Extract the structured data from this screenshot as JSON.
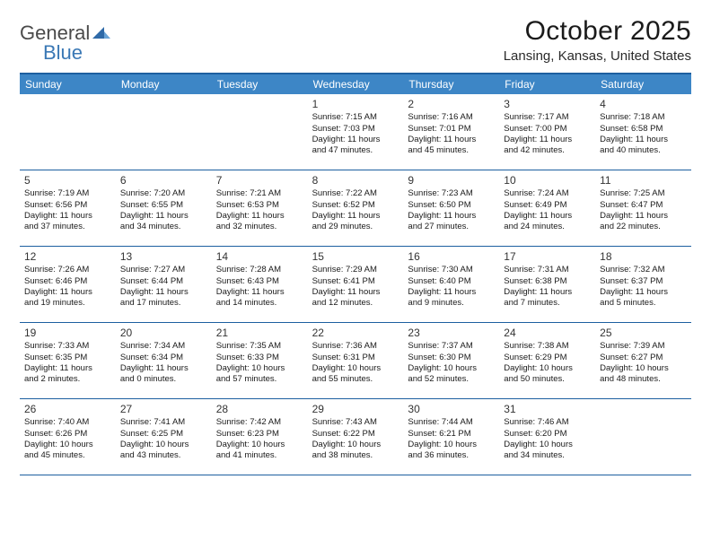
{
  "logo": {
    "general": "General",
    "blue": "Blue"
  },
  "title": "October 2025",
  "location": "Lansing, Kansas, United States",
  "colors": {
    "header_bg": "#3d86c6",
    "border": "#1d5fa0",
    "logo_blue": "#3a78b5",
    "text": "#1a1a1a"
  },
  "day_names": [
    "Sunday",
    "Monday",
    "Tuesday",
    "Wednesday",
    "Thursday",
    "Friday",
    "Saturday"
  ],
  "weeks": [
    [
      null,
      null,
      null,
      {
        "n": "1",
        "sr": "Sunrise: 7:15 AM",
        "ss": "Sunset: 7:03 PM",
        "dl1": "Daylight: 11 hours",
        "dl2": "and 47 minutes."
      },
      {
        "n": "2",
        "sr": "Sunrise: 7:16 AM",
        "ss": "Sunset: 7:01 PM",
        "dl1": "Daylight: 11 hours",
        "dl2": "and 45 minutes."
      },
      {
        "n": "3",
        "sr": "Sunrise: 7:17 AM",
        "ss": "Sunset: 7:00 PM",
        "dl1": "Daylight: 11 hours",
        "dl2": "and 42 minutes."
      },
      {
        "n": "4",
        "sr": "Sunrise: 7:18 AM",
        "ss": "Sunset: 6:58 PM",
        "dl1": "Daylight: 11 hours",
        "dl2": "and 40 minutes."
      }
    ],
    [
      {
        "n": "5",
        "sr": "Sunrise: 7:19 AM",
        "ss": "Sunset: 6:56 PM",
        "dl1": "Daylight: 11 hours",
        "dl2": "and 37 minutes."
      },
      {
        "n": "6",
        "sr": "Sunrise: 7:20 AM",
        "ss": "Sunset: 6:55 PM",
        "dl1": "Daylight: 11 hours",
        "dl2": "and 34 minutes."
      },
      {
        "n": "7",
        "sr": "Sunrise: 7:21 AM",
        "ss": "Sunset: 6:53 PM",
        "dl1": "Daylight: 11 hours",
        "dl2": "and 32 minutes."
      },
      {
        "n": "8",
        "sr": "Sunrise: 7:22 AM",
        "ss": "Sunset: 6:52 PM",
        "dl1": "Daylight: 11 hours",
        "dl2": "and 29 minutes."
      },
      {
        "n": "9",
        "sr": "Sunrise: 7:23 AM",
        "ss": "Sunset: 6:50 PM",
        "dl1": "Daylight: 11 hours",
        "dl2": "and 27 minutes."
      },
      {
        "n": "10",
        "sr": "Sunrise: 7:24 AM",
        "ss": "Sunset: 6:49 PM",
        "dl1": "Daylight: 11 hours",
        "dl2": "and 24 minutes."
      },
      {
        "n": "11",
        "sr": "Sunrise: 7:25 AM",
        "ss": "Sunset: 6:47 PM",
        "dl1": "Daylight: 11 hours",
        "dl2": "and 22 minutes."
      }
    ],
    [
      {
        "n": "12",
        "sr": "Sunrise: 7:26 AM",
        "ss": "Sunset: 6:46 PM",
        "dl1": "Daylight: 11 hours",
        "dl2": "and 19 minutes."
      },
      {
        "n": "13",
        "sr": "Sunrise: 7:27 AM",
        "ss": "Sunset: 6:44 PM",
        "dl1": "Daylight: 11 hours",
        "dl2": "and 17 minutes."
      },
      {
        "n": "14",
        "sr": "Sunrise: 7:28 AM",
        "ss": "Sunset: 6:43 PM",
        "dl1": "Daylight: 11 hours",
        "dl2": "and 14 minutes."
      },
      {
        "n": "15",
        "sr": "Sunrise: 7:29 AM",
        "ss": "Sunset: 6:41 PM",
        "dl1": "Daylight: 11 hours",
        "dl2": "and 12 minutes."
      },
      {
        "n": "16",
        "sr": "Sunrise: 7:30 AM",
        "ss": "Sunset: 6:40 PM",
        "dl1": "Daylight: 11 hours",
        "dl2": "and 9 minutes."
      },
      {
        "n": "17",
        "sr": "Sunrise: 7:31 AM",
        "ss": "Sunset: 6:38 PM",
        "dl1": "Daylight: 11 hours",
        "dl2": "and 7 minutes."
      },
      {
        "n": "18",
        "sr": "Sunrise: 7:32 AM",
        "ss": "Sunset: 6:37 PM",
        "dl1": "Daylight: 11 hours",
        "dl2": "and 5 minutes."
      }
    ],
    [
      {
        "n": "19",
        "sr": "Sunrise: 7:33 AM",
        "ss": "Sunset: 6:35 PM",
        "dl1": "Daylight: 11 hours",
        "dl2": "and 2 minutes."
      },
      {
        "n": "20",
        "sr": "Sunrise: 7:34 AM",
        "ss": "Sunset: 6:34 PM",
        "dl1": "Daylight: 11 hours",
        "dl2": "and 0 minutes."
      },
      {
        "n": "21",
        "sr": "Sunrise: 7:35 AM",
        "ss": "Sunset: 6:33 PM",
        "dl1": "Daylight: 10 hours",
        "dl2": "and 57 minutes."
      },
      {
        "n": "22",
        "sr": "Sunrise: 7:36 AM",
        "ss": "Sunset: 6:31 PM",
        "dl1": "Daylight: 10 hours",
        "dl2": "and 55 minutes."
      },
      {
        "n": "23",
        "sr": "Sunrise: 7:37 AM",
        "ss": "Sunset: 6:30 PM",
        "dl1": "Daylight: 10 hours",
        "dl2": "and 52 minutes."
      },
      {
        "n": "24",
        "sr": "Sunrise: 7:38 AM",
        "ss": "Sunset: 6:29 PM",
        "dl1": "Daylight: 10 hours",
        "dl2": "and 50 minutes."
      },
      {
        "n": "25",
        "sr": "Sunrise: 7:39 AM",
        "ss": "Sunset: 6:27 PM",
        "dl1": "Daylight: 10 hours",
        "dl2": "and 48 minutes."
      }
    ],
    [
      {
        "n": "26",
        "sr": "Sunrise: 7:40 AM",
        "ss": "Sunset: 6:26 PM",
        "dl1": "Daylight: 10 hours",
        "dl2": "and 45 minutes."
      },
      {
        "n": "27",
        "sr": "Sunrise: 7:41 AM",
        "ss": "Sunset: 6:25 PM",
        "dl1": "Daylight: 10 hours",
        "dl2": "and 43 minutes."
      },
      {
        "n": "28",
        "sr": "Sunrise: 7:42 AM",
        "ss": "Sunset: 6:23 PM",
        "dl1": "Daylight: 10 hours",
        "dl2": "and 41 minutes."
      },
      {
        "n": "29",
        "sr": "Sunrise: 7:43 AM",
        "ss": "Sunset: 6:22 PM",
        "dl1": "Daylight: 10 hours",
        "dl2": "and 38 minutes."
      },
      {
        "n": "30",
        "sr": "Sunrise: 7:44 AM",
        "ss": "Sunset: 6:21 PM",
        "dl1": "Daylight: 10 hours",
        "dl2": "and 36 minutes."
      },
      {
        "n": "31",
        "sr": "Sunrise: 7:46 AM",
        "ss": "Sunset: 6:20 PM",
        "dl1": "Daylight: 10 hours",
        "dl2": "and 34 minutes."
      },
      null
    ]
  ]
}
